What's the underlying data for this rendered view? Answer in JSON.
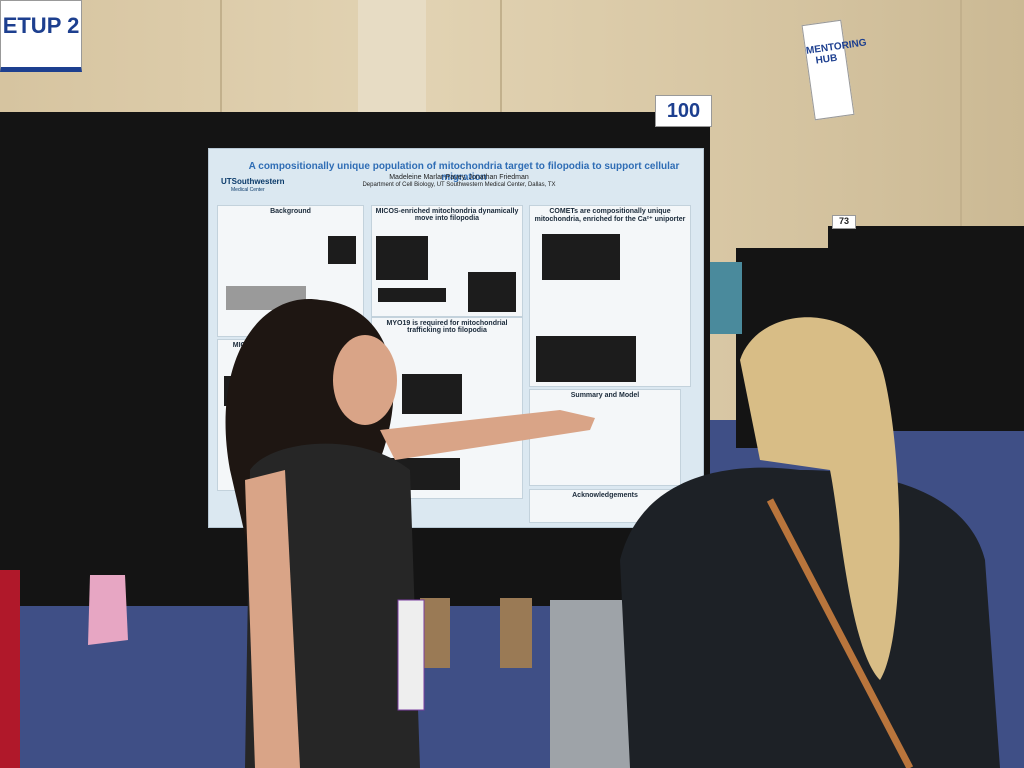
{
  "signs": {
    "left": "ETUP 2",
    "board_number": "100",
    "hub": "MENTORING HUB",
    "board_number_2": "73"
  },
  "poster": {
    "title": "A compositionally unique population of mitochondria target to filopodia to support cellular migration",
    "institution": "UTSouthwestern",
    "institution_sub": "Medical Center",
    "authors": "Madeleine Marlar-Pavey, Jonathan Friedman",
    "department": "Department of Cell Biology, UT Southwestern Medical Center, Dallas, TX",
    "sections": [
      "Background",
      "MICOS-enriched mitochondria dynamically move into filopodia",
      "COMETs are compositionally unique mitochondria, enriched for the Ca²⁺ uniporter",
      "MYO19 is required for mitochondrial trafficking into filopodia",
      "MICOS complexes mitochondria at",
      "Summary and Model",
      "Acknowledgements"
    ]
  }
}
